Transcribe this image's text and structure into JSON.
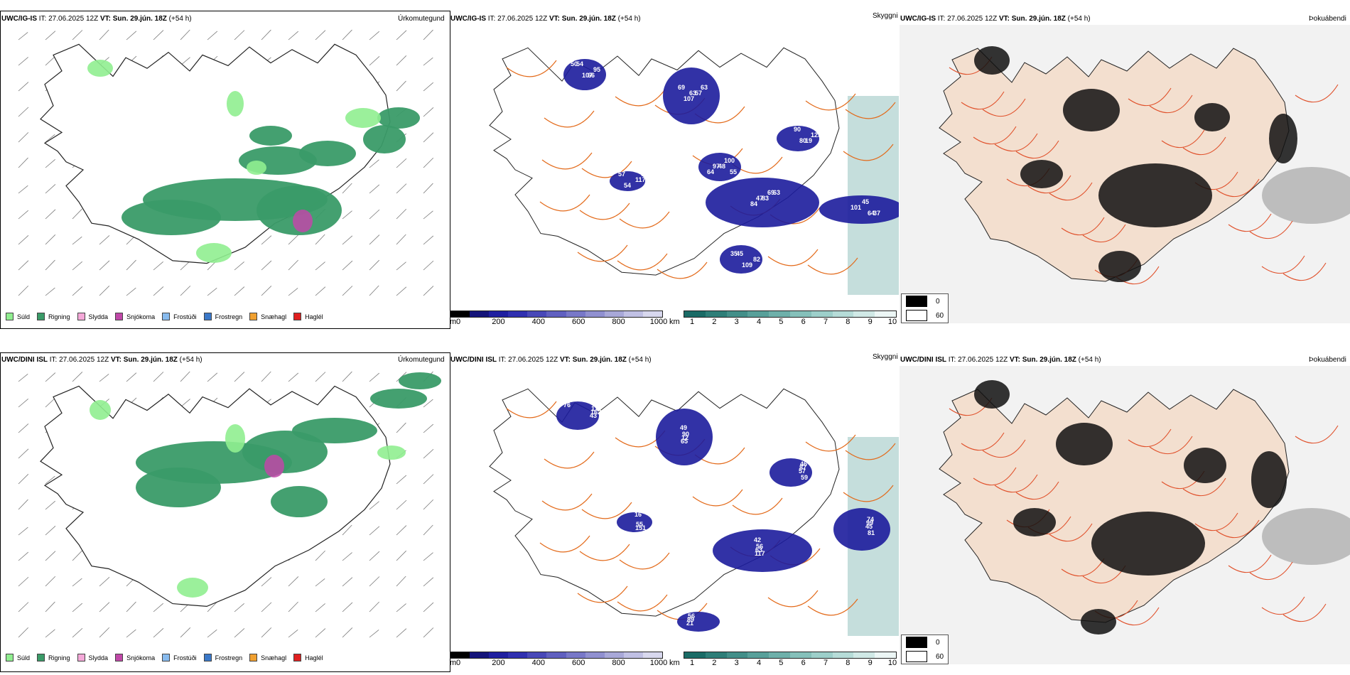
{
  "rows": [
    {
      "model": "UWC/IG-IS",
      "it_text": "IT: 27.06.2025 12Z",
      "vt_label": "VT:",
      "vt_value": "Sun. 29.jún. 18Z",
      "lead": "(+54 h)",
      "precip_title": "Úrkomutegund",
      "cloud_title": "Skyggni",
      "fog_title": "Þokuábendi",
      "cloud_labels": [
        "50",
        "63",
        "55",
        "47",
        "64",
        "35",
        "80",
        "96",
        "107",
        "63",
        "97",
        "69",
        "101",
        "109",
        "125",
        "54",
        "95",
        "107",
        "100",
        "84",
        "45",
        "82",
        "90",
        "117",
        "54",
        "57",
        "64",
        "83",
        "37",
        "45",
        "19",
        "57",
        "66",
        "69",
        "48",
        "63"
      ]
    },
    {
      "model": "UWC/DINI ISL",
      "it_text": "IT: 27.06.2025 12Z",
      "vt_label": "VT:",
      "vt_value": "Sun. 29.jún. 18Z",
      "lead": "(+54 h)",
      "precip_title": "Úrkomutegund",
      "cloud_title": "Skyggni",
      "fog_title": "Þokuábendi",
      "cloud_labels": [
        "76",
        "90",
        "59",
        "56",
        "81",
        "56",
        "55",
        "111",
        "12",
        "46",
        "63",
        "74",
        "89",
        "151",
        "162",
        "65",
        "87",
        "117",
        "99",
        "21",
        "16",
        "43",
        "49",
        "57",
        "42",
        "45"
      ]
    }
  ],
  "precip_legend": [
    {
      "label": "Súld",
      "color": "#90ee90"
    },
    {
      "label": "Rigning",
      "color": "#3a9b68"
    },
    {
      "label": "Slydda",
      "color": "#f4a8d8"
    },
    {
      "label": "Snjókoma",
      "color": "#c048a8"
    },
    {
      "label": "Frostúði",
      "color": "#88bbee"
    },
    {
      "label": "Frostregn",
      "color": "#3a78c8"
    },
    {
      "label": "Snæhagl",
      "color": "#f0a030"
    },
    {
      "label": "Haglél",
      "color": "#e02020"
    }
  ],
  "ceiling_bar": {
    "unit": "m",
    "ticks": [
      "0",
      "200",
      "400",
      "600",
      "800",
      "1000"
    ],
    "colors": [
      "#000000",
      "#14147a",
      "#1f1fa0",
      "#3030b0",
      "#4848b8",
      "#6060c0",
      "#7878c8",
      "#9090d0",
      "#a8a8d8",
      "#c0c0e4",
      "#d8d8ee"
    ]
  },
  "visibility_bar": {
    "unit": "km",
    "ticks": [
      "1",
      "2",
      "3",
      "4",
      "5",
      "6",
      "7",
      "8",
      "9",
      "10"
    ],
    "colors": [
      "#1a6b66",
      "#2e7e78",
      "#438f89",
      "#58a09a",
      "#6eb0aa",
      "#85c0ba",
      "#9dcfca",
      "#b6dcd8",
      "#d0e9e6",
      "#ecf6f5"
    ]
  },
  "fog_legend": [
    {
      "label": "0",
      "color": "#000000"
    },
    {
      "label": "60",
      "color": "#ffffff"
    }
  ],
  "colors": {
    "rain": "#3a9b68",
    "drizzle": "#90ee90",
    "snow": "#c048a8",
    "sleet": "#f4a8d8",
    "low_cloud": "#1c1c9c",
    "visibility": "#5aa09a",
    "roads": "#e36a1a",
    "land_fog": "#f3dfcf"
  }
}
